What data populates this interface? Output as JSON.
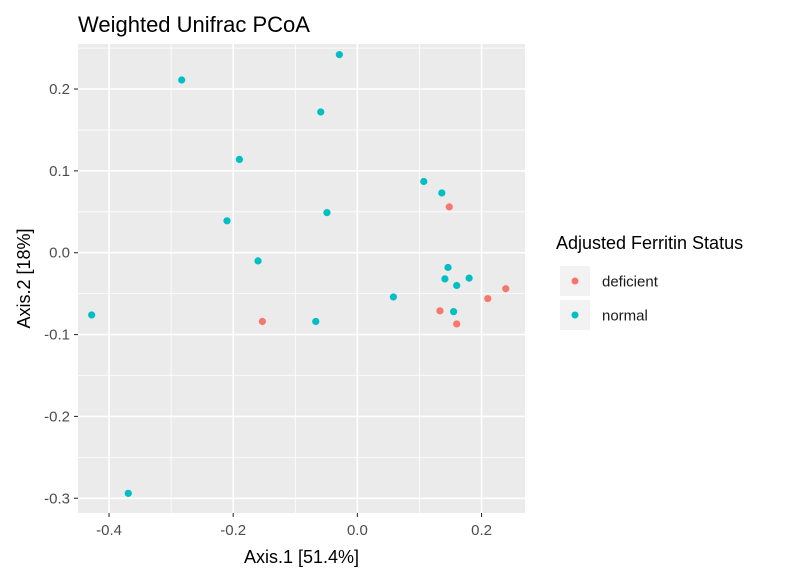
{
  "chart_data": {
    "type": "scatter",
    "title": "Weighted Unifrac PCoA",
    "xlabel": "Axis.1   [51.4%]",
    "ylabel": "Axis.2   [18%]",
    "xlim": [
      -0.45,
      0.27
    ],
    "ylim": [
      -0.318,
      0.255
    ],
    "grid": true,
    "panel_background": "#EBEBEB",
    "legend_position": "right",
    "x_ticks": [
      {
        "value": -0.4,
        "label": "-0.4"
      },
      {
        "value": -0.2,
        "label": "-0.2"
      },
      {
        "value": 0.0,
        "label": "0.0"
      },
      {
        "value": 0.2,
        "label": "0.2"
      }
    ],
    "y_ticks": [
      {
        "value": 0.2,
        "label": "0.2"
      },
      {
        "value": 0.1,
        "label": "0.1"
      },
      {
        "value": 0.0,
        "label": "0.0"
      },
      {
        "value": -0.1,
        "label": "-0.1"
      },
      {
        "value": -0.2,
        "label": "-0.2"
      },
      {
        "value": -0.3,
        "label": "-0.3"
      }
    ],
    "legend": {
      "title": "Adjusted Ferritin Status"
    },
    "series": [
      {
        "name": "deficient",
        "color": "#F8766D",
        "points": [
          {
            "x": -0.153,
            "y": -0.084
          },
          {
            "x": 0.133,
            "y": -0.071
          },
          {
            "x": 0.148,
            "y": 0.056
          },
          {
            "x": 0.16,
            "y": -0.087
          },
          {
            "x": 0.21,
            "y": -0.056
          },
          {
            "x": 0.239,
            "y": -0.044
          }
        ]
      },
      {
        "name": "normal",
        "color": "#00BFC4",
        "points": [
          {
            "x": -0.428,
            "y": -0.076
          },
          {
            "x": -0.369,
            "y": -0.294
          },
          {
            "x": -0.283,
            "y": 0.211
          },
          {
            "x": -0.21,
            "y": 0.039
          },
          {
            "x": -0.19,
            "y": 0.114
          },
          {
            "x": -0.16,
            "y": -0.01
          },
          {
            "x": -0.067,
            "y": -0.084
          },
          {
            "x": -0.059,
            "y": 0.172
          },
          {
            "x": -0.049,
            "y": 0.049
          },
          {
            "x": -0.029,
            "y": 0.242
          },
          {
            "x": 0.058,
            "y": -0.054
          },
          {
            "x": 0.107,
            "y": 0.087
          },
          {
            "x": 0.136,
            "y": 0.073
          },
          {
            "x": 0.141,
            "y": -0.032
          },
          {
            "x": 0.146,
            "y": -0.018
          },
          {
            "x": 0.155,
            "y": -0.072
          },
          {
            "x": 0.16,
            "y": -0.04
          },
          {
            "x": 0.18,
            "y": -0.031
          }
        ]
      }
    ]
  }
}
